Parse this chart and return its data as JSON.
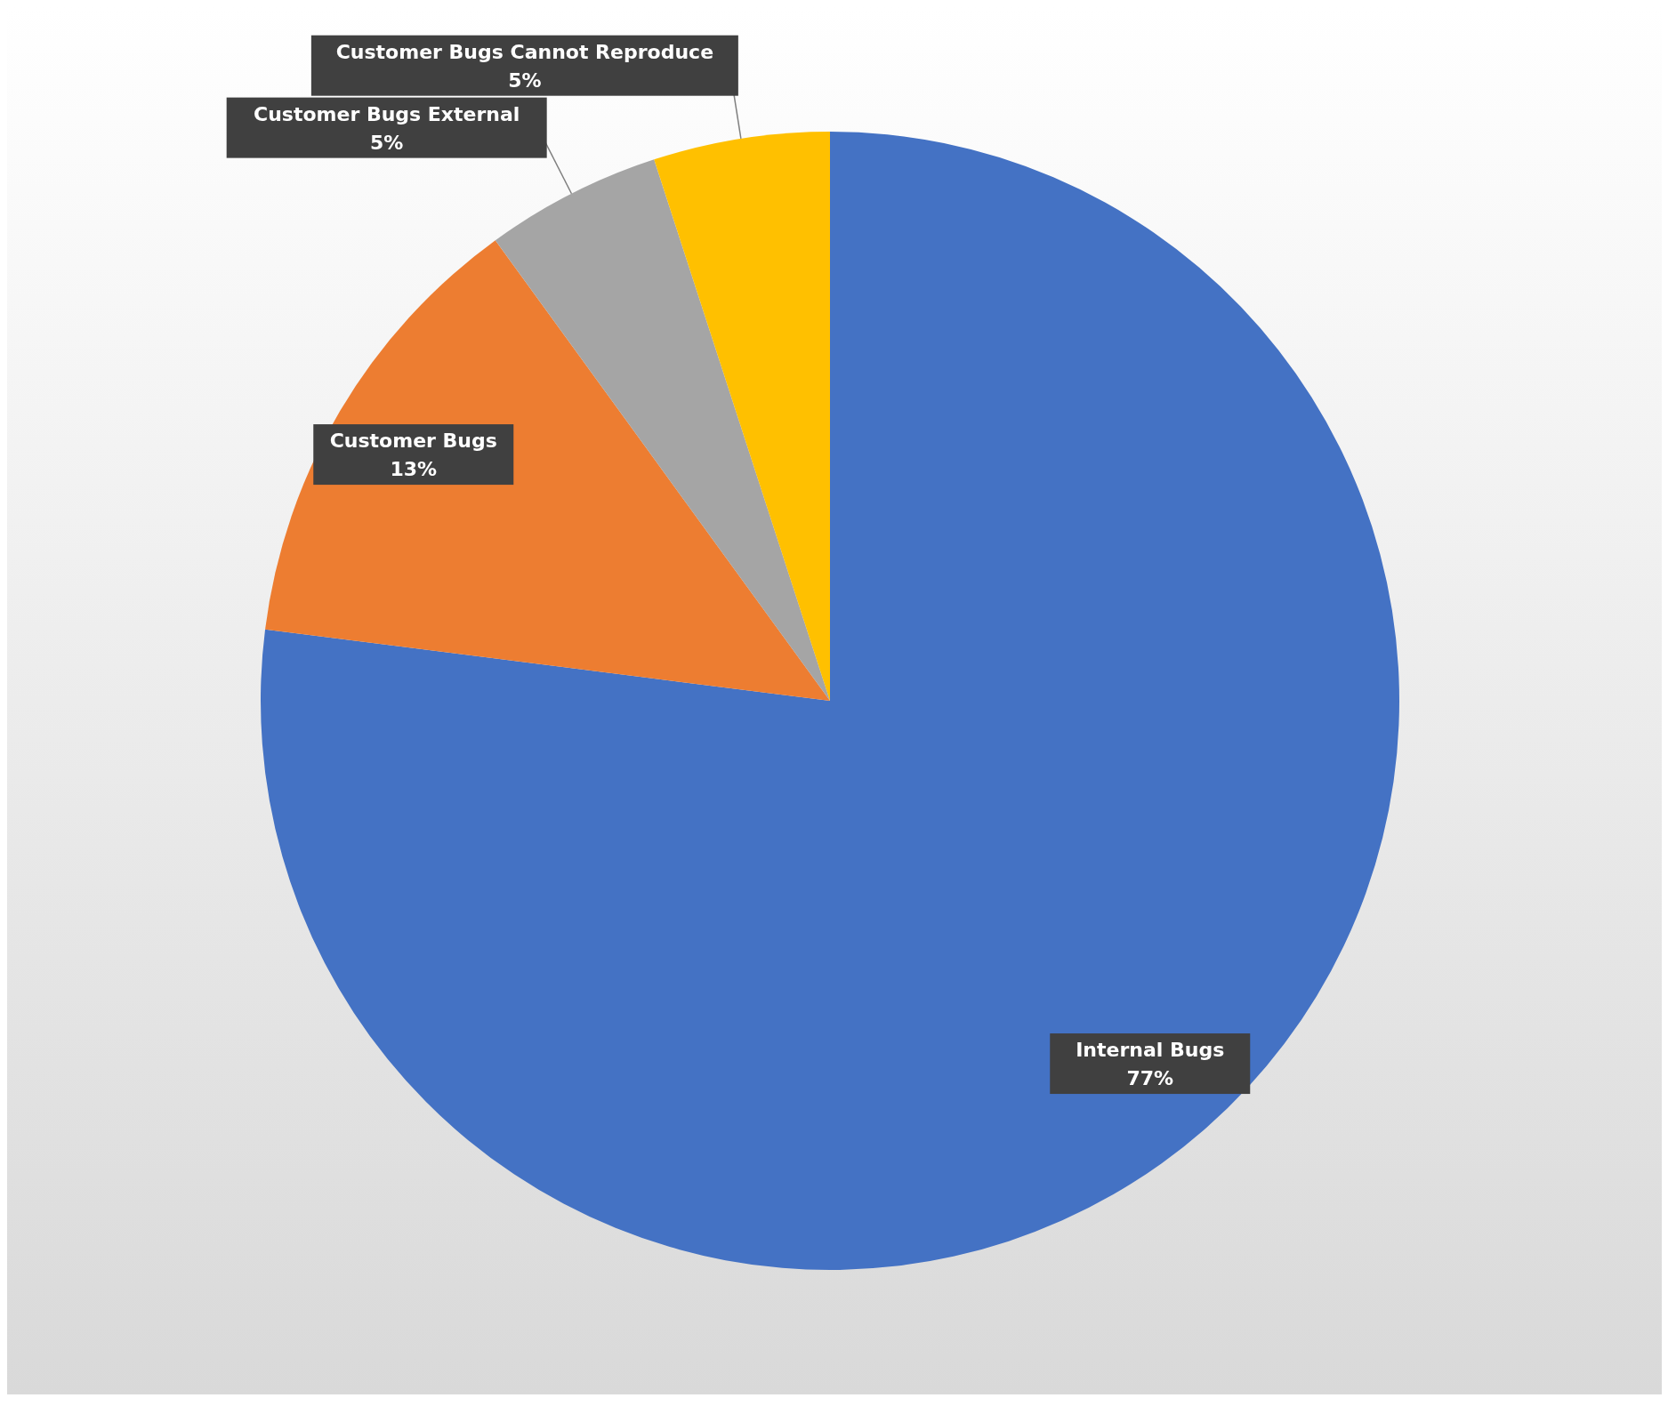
{
  "chart_data": {
    "type": "pie",
    "categories": [
      "Internal Bugs",
      "Customer Bugs",
      "Customer Bugs External",
      "Customer Bugs Cannot Reproduce"
    ],
    "values": [
      77,
      13,
      5,
      5
    ],
    "colors": [
      "#4472c4",
      "#ed7d31",
      "#a5a5a5",
      "#ffc000"
    ],
    "value_labels": [
      "77%",
      "13%",
      "5%",
      "5%"
    ]
  }
}
